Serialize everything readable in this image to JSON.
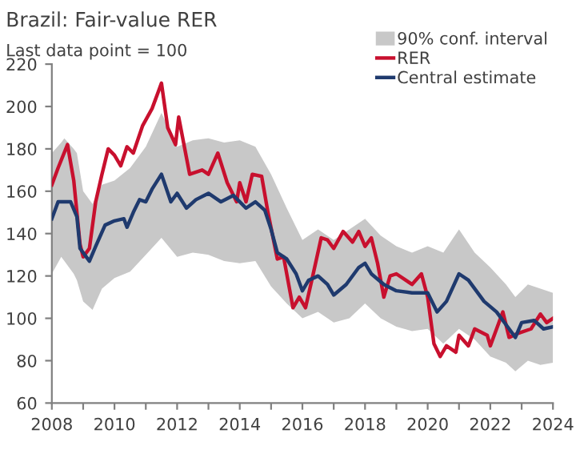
{
  "chart_data": {
    "type": "line",
    "title": "Brazil: Fair-value RER",
    "subtitle": "Last data point = 100",
    "xlim": [
      2008,
      2024
    ],
    "xticks": [
      2008,
      {
        "value": 2009,
        "label": null
      },
      2010,
      {
        "value": 2011,
        "label": null
      },
      2012,
      {
        "value": 2013,
        "label": null
      },
      2014,
      {
        "value": 2015,
        "label": null
      },
      2016,
      {
        "value": 2017,
        "label": null
      },
      2018,
      {
        "value": 2019,
        "label": null
      },
      2020,
      {
        "value": 2021,
        "label": null
      },
      2022,
      {
        "value": 2023,
        "label": null
      },
      2024
    ],
    "ylim": [
      60,
      220
    ],
    "yticks": [
      60,
      80,
      100,
      120,
      140,
      160,
      180,
      200,
      220
    ],
    "grid": false,
    "legend": "top right",
    "series": [
      {
        "name": "90% conf. interval",
        "type": "area",
        "color": "#c8c8c8",
        "x": [
          2008,
          2008.3,
          2008.4,
          2008.7,
          2008.8,
          2009.0,
          2009.3,
          2009.6,
          2010.0,
          2010.5,
          2011.0,
          2011.5,
          2012.0,
          2012.5,
          2013.0,
          2013.5,
          2014.0,
          2014.5,
          2015.0,
          2015.5,
          2016.0,
          2016.5,
          2017.0,
          2017.5,
          2018.0,
          2018.5,
          2019.0,
          2019.5,
          2020.0,
          2020.5,
          2021.0,
          2021.5,
          2022.0,
          2022.5,
          2022.8,
          2023.2,
          2023.6,
          2024.0
        ],
        "values": [
          null,
          null,
          null,
          null,
          null,
          null,
          null,
          null,
          null,
          null,
          null,
          null,
          null,
          null,
          null,
          null,
          null,
          null,
          null,
          null,
          null,
          null,
          null,
          null,
          null,
          null,
          null,
          null,
          null,
          null,
          null,
          null,
          null,
          null,
          null,
          null,
          null,
          null
        ],
        "lower": [
          121,
          129,
          127,
          121,
          118,
          108,
          104,
          114,
          119,
          122,
          130,
          138,
          129,
          131,
          130,
          127,
          126,
          127,
          115,
          107,
          100,
          103,
          98,
          100,
          107,
          100,
          96,
          94,
          95,
          88,
          95,
          90,
          82,
          79,
          75,
          80,
          78,
          79
        ],
        "upper": [
          178,
          183,
          185,
          180,
          178,
          160,
          154,
          163,
          165,
          171,
          181,
          197,
          181,
          184,
          185,
          183,
          184,
          181,
          168,
          152,
          137,
          142,
          137,
          142,
          147,
          139,
          134,
          131,
          134,
          131,
          142,
          131,
          124,
          116,
          110,
          116,
          114,
          112
        ]
      },
      {
        "name": "RER",
        "color": "#c8102e",
        "x": [
          2008,
          2008.2,
          2008.5,
          2008.7,
          2008.9,
          2009.0,
          2009.2,
          2009.4,
          2009.6,
          2009.8,
          2010.0,
          2010.2,
          2010.4,
          2010.6,
          2010.9,
          2011.2,
          2011.4,
          2011.5,
          2011.7,
          2011.95,
          2012.05,
          2012.4,
          2012.8,
          2013.0,
          2013.3,
          2013.6,
          2013.9,
          2014.0,
          2014.2,
          2014.4,
          2014.7,
          2014.9,
          2015.2,
          2015.4,
          2015.7,
          2015.9,
          2016.1,
          2016.3,
          2016.6,
          2016.8,
          2017.0,
          2017.3,
          2017.6,
          2017.8,
          2018.0,
          2018.2,
          2018.4,
          2018.6,
          2018.8,
          2019.0,
          2019.3,
          2019.5,
          2019.8,
          2020.0,
          2020.2,
          2020.4,
          2020.6,
          2020.9,
          2021.0,
          2021.3,
          2021.5,
          2021.9,
          2022.0,
          2022.2,
          2022.4,
          2022.6,
          2022.9,
          2023.3,
          2023.6,
          2023.8,
          2024.0
        ],
        "values": [
          163,
          171,
          182,
          165,
          135,
          129,
          133,
          155,
          168,
          180,
          177,
          172,
          181,
          178,
          191,
          199,
          207,
          211,
          190,
          182,
          195,
          168,
          170,
          168,
          178,
          164,
          155,
          164,
          155,
          168,
          167,
          150,
          128,
          129,
          105,
          110,
          105,
          118,
          138,
          137,
          133,
          141,
          136,
          141,
          134,
          138,
          126,
          110,
          120,
          121,
          118,
          116,
          121,
          110,
          88,
          82,
          87,
          84,
          92,
          87,
          95,
          92,
          87,
          95,
          103,
          91,
          93,
          95,
          102,
          98,
          100
        ]
      },
      {
        "name": "Central estimate",
        "color": "#1f3a6e",
        "x": [
          2008,
          2008.2,
          2008.6,
          2008.8,
          2008.9,
          2009.2,
          2009.4,
          2009.7,
          2010.0,
          2010.3,
          2010.4,
          2010.6,
          2010.8,
          2011.0,
          2011.2,
          2011.5,
          2011.8,
          2012.0,
          2012.3,
          2012.6,
          2013.0,
          2013.4,
          2013.8,
          2014.2,
          2014.5,
          2014.8,
          2015.0,
          2015.2,
          2015.5,
          2015.8,
          2016.0,
          2016.2,
          2016.5,
          2016.8,
          2017.0,
          2017.4,
          2017.8,
          2018.0,
          2018.2,
          2018.6,
          2019.0,
          2019.5,
          2020.0,
          2020.3,
          2020.6,
          2021.0,
          2021.3,
          2021.8,
          2022.2,
          2022.6,
          2022.8,
          2023.0,
          2023.4,
          2023.7,
          2024.0
        ],
        "values": [
          147,
          155,
          155,
          148,
          133,
          127,
          134,
          144,
          146,
          147,
          143,
          150,
          156,
          155,
          161,
          168,
          155,
          159,
          152,
          156,
          159,
          155,
          158,
          152,
          155,
          151,
          142,
          131,
          128,
          121,
          113,
          118,
          120,
          116,
          111,
          116,
          124,
          126,
          121,
          116,
          113,
          112,
          112,
          103,
          108,
          121,
          118,
          108,
          103,
          95,
          91,
          98,
          99,
          95,
          96
        ]
      }
    ]
  }
}
